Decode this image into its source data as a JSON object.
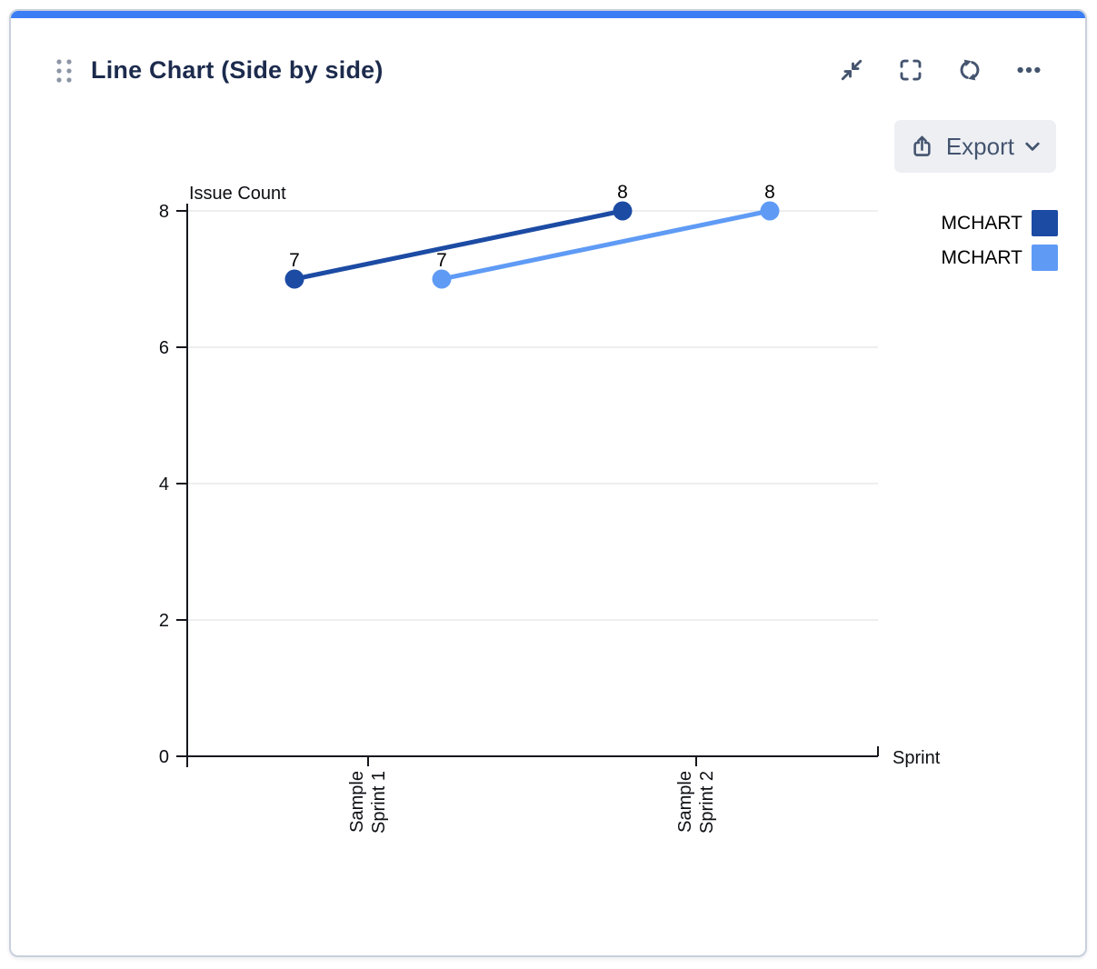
{
  "header": {
    "title": "Line Chart (Side by side)",
    "drag_handle_icon": "drag-handle-icon",
    "actions": [
      {
        "icon": "collapse-icon"
      },
      {
        "icon": "fullscreen-icon"
      },
      {
        "icon": "refresh-icon"
      },
      {
        "icon": "more-options-icon"
      }
    ]
  },
  "toolbar": {
    "export_label": "Export",
    "export_icon": "export-icon",
    "chevron_icon": "chevron-down-icon"
  },
  "colors": {
    "accent": "#3B7DF5",
    "card_border": "#C9D0DC",
    "icon": "#44546F",
    "title": "#1C2B4D",
    "grid": "#E8E9EC",
    "axis": "#15171C",
    "series_dark": "#1C4BA4",
    "series_light": "#5F9BF5"
  },
  "chart_data": {
    "type": "line",
    "variant": "side-by-side",
    "title": "",
    "xlabel": "Sprint",
    "ylabel": "Issue Count",
    "categories": [
      "Sample Sprint 1",
      "Sample Sprint 2"
    ],
    "category_label_lines": [
      [
        "Sample",
        "Sprint 1"
      ],
      [
        "Sample",
        "Sprint 2"
      ]
    ],
    "series": [
      {
        "name": "MCHART",
        "color": "#1C4BA4",
        "values": [
          7,
          8
        ]
      },
      {
        "name": "MCHART",
        "color": "#5F9BF5",
        "values": [
          7,
          8
        ]
      }
    ],
    "yticks": [
      0,
      2,
      4,
      6,
      8
    ],
    "ylim": [
      0,
      8
    ],
    "grid": true,
    "point_labels": true,
    "legend_position": "top-right"
  }
}
